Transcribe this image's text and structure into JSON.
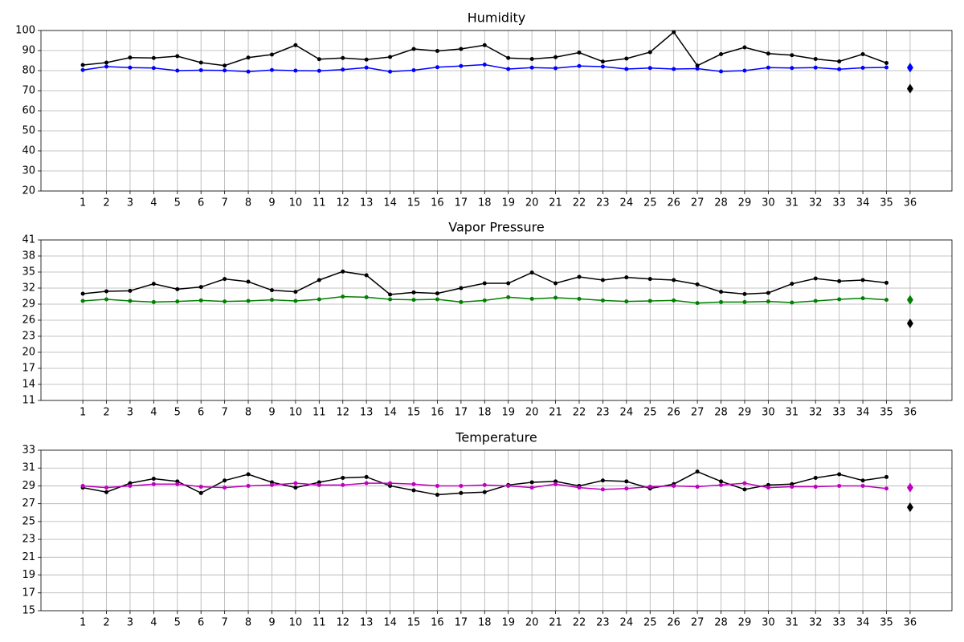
{
  "chart_data": [
    {
      "type": "line",
      "title": "Humidity",
      "x": [
        1,
        2,
        3,
        4,
        5,
        6,
        7,
        8,
        9,
        10,
        11,
        12,
        13,
        14,
        15,
        16,
        17,
        18,
        19,
        20,
        21,
        22,
        23,
        24,
        25,
        26,
        27,
        28,
        29,
        30,
        31,
        32,
        33,
        34,
        35
      ],
      "xlim": [
        -0.77,
        37.77
      ],
      "xticks": [
        1,
        2,
        3,
        4,
        5,
        6,
        7,
        8,
        9,
        10,
        11,
        12,
        13,
        14,
        15,
        16,
        17,
        18,
        19,
        20,
        21,
        22,
        23,
        24,
        25,
        26,
        27,
        28,
        29,
        30,
        31,
        32,
        33,
        34,
        35,
        36
      ],
      "ylim": [
        20,
        100
      ],
      "yticks": [
        20,
        30,
        40,
        50,
        60,
        70,
        80,
        90,
        100
      ],
      "grid": true,
      "series": [
        {
          "color": "#000000",
          "marker": "dot",
          "line": true,
          "values": [
            82.8,
            84,
            86.5,
            86.3,
            87.2,
            84,
            82.5,
            86.5,
            88,
            92.7,
            85.7,
            86.3,
            85.5,
            86.8,
            90.8,
            89.8,
            90.8,
            92.7,
            86.3,
            85.8,
            86.7,
            89,
            84.5,
            86,
            89.2,
            99.2,
            82.5,
            88.2,
            91.6,
            88.5,
            87.7,
            85.8,
            84.6,
            88.2,
            83.8
          ]
        },
        {
          "color": "#0000ff",
          "marker": "dot",
          "line": true,
          "values": [
            80.3,
            82,
            81.5,
            81.3,
            80,
            80.2,
            80.1,
            79.5,
            80.3,
            80,
            79.9,
            80.5,
            81.5,
            79.5,
            80.2,
            81.7,
            82.3,
            83,
            80.8,
            81.5,
            81.2,
            82.3,
            82,
            80.8,
            81.3,
            80.8,
            81,
            79.6,
            80,
            81.5,
            81.3,
            81.5,
            80.7,
            81.4,
            81.6
          ]
        },
        {
          "color": "#000000",
          "marker": "diamond",
          "line": false,
          "x": [
            36
          ],
          "values": [
            71
          ]
        },
        {
          "color": "#0000ff",
          "marker": "diamond",
          "line": false,
          "x": [
            36
          ],
          "values": [
            81.5
          ]
        }
      ]
    },
    {
      "type": "line",
      "title": "Vapor Pressure",
      "x": [
        1,
        2,
        3,
        4,
        5,
        6,
        7,
        8,
        9,
        10,
        11,
        12,
        13,
        14,
        15,
        16,
        17,
        18,
        19,
        20,
        21,
        22,
        23,
        24,
        25,
        26,
        27,
        28,
        29,
        30,
        31,
        32,
        33,
        34,
        35
      ],
      "xlim": [
        -0.77,
        37.77
      ],
      "xticks": [
        1,
        2,
        3,
        4,
        5,
        6,
        7,
        8,
        9,
        10,
        11,
        12,
        13,
        14,
        15,
        16,
        17,
        18,
        19,
        20,
        21,
        22,
        23,
        24,
        25,
        26,
        27,
        28,
        29,
        30,
        31,
        32,
        33,
        34,
        35,
        36
      ],
      "ylim": [
        11,
        41
      ],
      "yticks": [
        11,
        14,
        17,
        20,
        23,
        26,
        29,
        32,
        35,
        38,
        41
      ],
      "grid": true,
      "series": [
        {
          "color": "#000000",
          "marker": "dot",
          "line": true,
          "values": [
            30.95,
            31.4,
            31.5,
            32.8,
            31.8,
            32.2,
            33.7,
            33.2,
            31.6,
            31.3,
            33.5,
            35.1,
            34.4,
            30.8,
            31.2,
            31.0,
            32.0,
            32.9,
            32.9,
            34.9,
            32.9,
            34.1,
            33.5,
            34.0,
            33.7,
            33.5,
            32.7,
            31.3,
            30.9,
            31.1,
            32.8,
            33.8,
            33.3,
            33.5,
            33.0
          ]
        },
        {
          "color": "#008000",
          "marker": "dot",
          "line": true,
          "values": [
            29.6,
            29.9,
            29.6,
            29.4,
            29.5,
            29.7,
            29.5,
            29.6,
            29.8,
            29.6,
            29.9,
            30.4,
            30.3,
            29.9,
            29.8,
            29.9,
            29.4,
            29.7,
            30.3,
            30.0,
            30.2,
            30.0,
            29.7,
            29.5,
            29.6,
            29.7,
            29.2,
            29.4,
            29.4,
            29.5,
            29.3,
            29.6,
            29.9,
            30.1,
            29.8
          ]
        },
        {
          "color": "#000000",
          "marker": "diamond",
          "line": false,
          "x": [
            36
          ],
          "values": [
            25.4
          ]
        },
        {
          "color": "#008000",
          "marker": "diamond",
          "line": false,
          "x": [
            36
          ],
          "values": [
            29.8
          ]
        }
      ]
    },
    {
      "type": "line",
      "title": "Temperature",
      "x": [
        1,
        2,
        3,
        4,
        5,
        6,
        7,
        8,
        9,
        10,
        11,
        12,
        13,
        14,
        15,
        16,
        17,
        18,
        19,
        20,
        21,
        22,
        23,
        24,
        25,
        26,
        27,
        28,
        29,
        30,
        31,
        32,
        33,
        34,
        35
      ],
      "xlim": [
        -0.77,
        37.77
      ],
      "xticks": [
        1,
        2,
        3,
        4,
        5,
        6,
        7,
        8,
        9,
        10,
        11,
        12,
        13,
        14,
        15,
        16,
        17,
        18,
        19,
        20,
        21,
        22,
        23,
        24,
        25,
        26,
        27,
        28,
        29,
        30,
        31,
        32,
        33,
        34,
        35,
        36
      ],
      "ylim": [
        15,
        33
      ],
      "yticks": [
        15,
        17,
        19,
        21,
        23,
        25,
        27,
        29,
        31,
        33
      ],
      "grid": true,
      "series": [
        {
          "color": "#000000",
          "marker": "dot",
          "line": true,
          "values": [
            28.8,
            28.3,
            29.3,
            29.8,
            29.5,
            28.2,
            29.6,
            30.3,
            29.4,
            28.8,
            29.4,
            29.9,
            30.0,
            29.0,
            28.5,
            28.0,
            28.2,
            28.3,
            29.1,
            29.4,
            29.5,
            29.0,
            29.6,
            29.5,
            28.7,
            29.2,
            30.6,
            29.5,
            28.6,
            29.1,
            29.2,
            29.9,
            30.3,
            29.6,
            30.0
          ]
        },
        {
          "color": "#bf00bf",
          "marker": "dot",
          "line": true,
          "values": [
            29.0,
            28.8,
            29.0,
            29.2,
            29.2,
            28.9,
            28.8,
            29.0,
            29.1,
            29.3,
            29.1,
            29.1,
            29.3,
            29.3,
            29.2,
            29.0,
            29.0,
            29.1,
            29.0,
            28.8,
            29.2,
            28.8,
            28.6,
            28.7,
            28.9,
            29.0,
            28.9,
            29.1,
            29.3,
            28.8,
            28.9,
            28.9,
            29.0,
            29.0,
            28.7
          ]
        },
        {
          "color": "#000000",
          "marker": "diamond",
          "line": false,
          "x": [
            36
          ],
          "values": [
            26.6
          ]
        },
        {
          "color": "#bf00bf",
          "marker": "diamond",
          "line": false,
          "x": [
            36
          ],
          "values": [
            28.8
          ]
        }
      ]
    }
  ]
}
